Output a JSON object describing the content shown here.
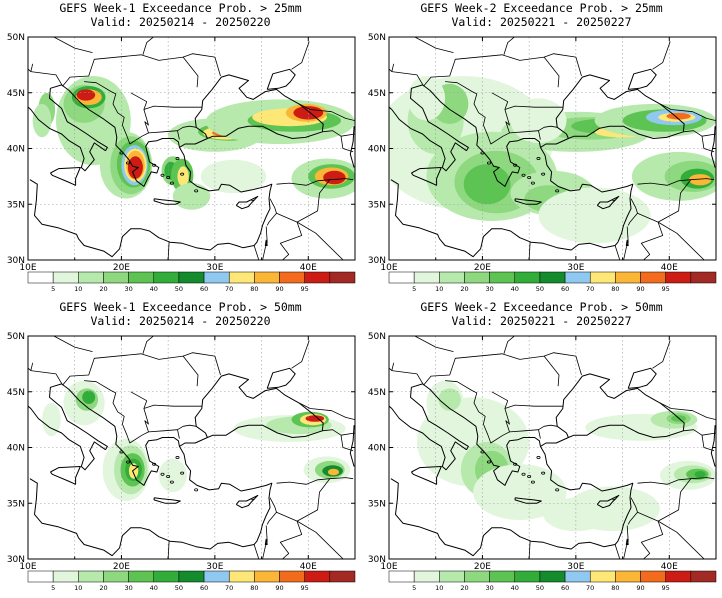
{
  "panels": [
    {
      "title": "GEFS Week-1 Exceedance Prob. > 25mm",
      "valid": "Valid: 20250214 - 20250220",
      "week": 1,
      "threshold_mm": 25
    },
    {
      "title": "GEFS Week-2 Exceedance Prob. > 25mm",
      "valid": "Valid: 20250221 - 20250227",
      "week": 2,
      "threshold_mm": 25
    },
    {
      "title": "GEFS Week-1 Exceedance Prob. > 50mm",
      "valid": "Valid: 20250214 - 20250220",
      "week": 1,
      "threshold_mm": 50
    },
    {
      "title": "GEFS Week-2 Exceedance Prob. > 50mm",
      "valid": "Valid: 20250221 - 20250227",
      "week": 2,
      "threshold_mm": 50
    }
  ],
  "map": {
    "lon_labels": [
      "10E",
      "20E",
      "30E",
      "40E"
    ],
    "lat_labels": [
      "50N",
      "45N",
      "40N",
      "35N",
      "30N"
    ],
    "lon_range": [
      10,
      45
    ],
    "lat_range": [
      30,
      50
    ]
  },
  "colorbar": {
    "labels": [
      "5",
      "10",
      "20",
      "30",
      "40",
      "50",
      "60",
      "70",
      "80",
      "90",
      "95"
    ],
    "colors": [
      "#ffffff",
      "#e1f6dc",
      "#b7e9ad",
      "#8ed980",
      "#5dc353",
      "#32ad3a",
      "#148b2c",
      "#8fc8f0",
      "#fde776",
      "#fbb637",
      "#f36c1d",
      "#cc1c14",
      "#a32a24"
    ]
  },
  "colors": {
    "coast": "#000000",
    "grid": "#9a9a9a"
  }
}
